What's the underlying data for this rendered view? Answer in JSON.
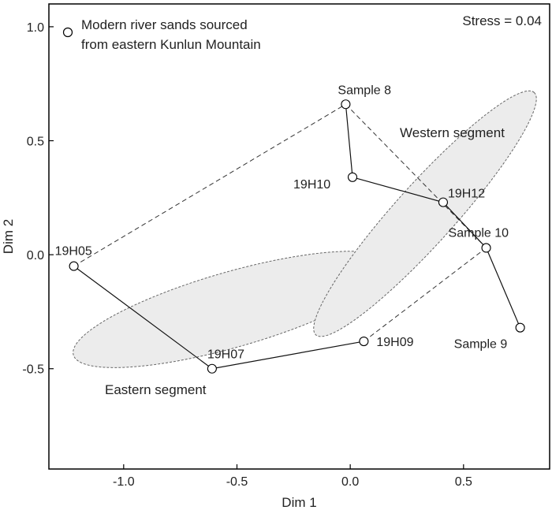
{
  "chart_data": {
    "type": "scatter",
    "xlabel": "Dim 1",
    "ylabel": "Dim 2",
    "xlim": [
      -1.33,
      0.88
    ],
    "ylim": [
      -0.94,
      1.1
    ],
    "xticks": [
      -1.0,
      -0.5,
      0.0,
      0.5
    ],
    "yticks": [
      -0.5,
      0.0,
      0.5,
      1.0
    ],
    "xtick_labels": [
      "-1.0",
      "-0.5",
      "0.0",
      "0.5"
    ],
    "ytick_labels": [
      "-0.5",
      "0.0",
      "0.5",
      "1.0"
    ],
    "stress_label": "Stress = 0.04",
    "legend": {
      "placement": "top-left",
      "lines": [
        "Modern river sands sourced",
        "from eastern Kunlun Mountain"
      ]
    },
    "points": [
      {
        "label": "19H05",
        "x": -1.22,
        "y": -0.05
      },
      {
        "label": "19H07",
        "x": -0.61,
        "y": -0.5
      },
      {
        "label": "19H09",
        "x": 0.06,
        "y": -0.38
      },
      {
        "label": "Sample 8",
        "x": -0.02,
        "y": 0.66
      },
      {
        "label": "19H10",
        "x": 0.01,
        "y": 0.34
      },
      {
        "label": "19H12",
        "x": 0.41,
        "y": 0.23
      },
      {
        "label": "Sample 10",
        "x": 0.6,
        "y": 0.03
      },
      {
        "label": "Sample 9",
        "x": 0.75,
        "y": -0.32
      }
    ],
    "solid_paths": [
      [
        "19H05",
        "19H07",
        "19H09"
      ],
      [
        "Sample 8",
        "19H10",
        "19H12",
        "Sample 10",
        "Sample 9"
      ]
    ],
    "dashed_lines": [
      [
        "19H05",
        "Sample 8"
      ],
      [
        "19H09",
        "Sample 10"
      ],
      [
        "Sample 8",
        "Sample 10"
      ]
    ],
    "groups": [
      {
        "name": "Eastern segment",
        "center": [
          -0.52,
          -0.24
        ],
        "rx": 0.73,
        "ry": 0.165,
        "angle_deg": 16
      },
      {
        "name": "Western segment",
        "center": [
          0.33,
          0.18
        ],
        "rx": 0.72,
        "ry": 0.13,
        "angle_deg": 48
      }
    ]
  }
}
